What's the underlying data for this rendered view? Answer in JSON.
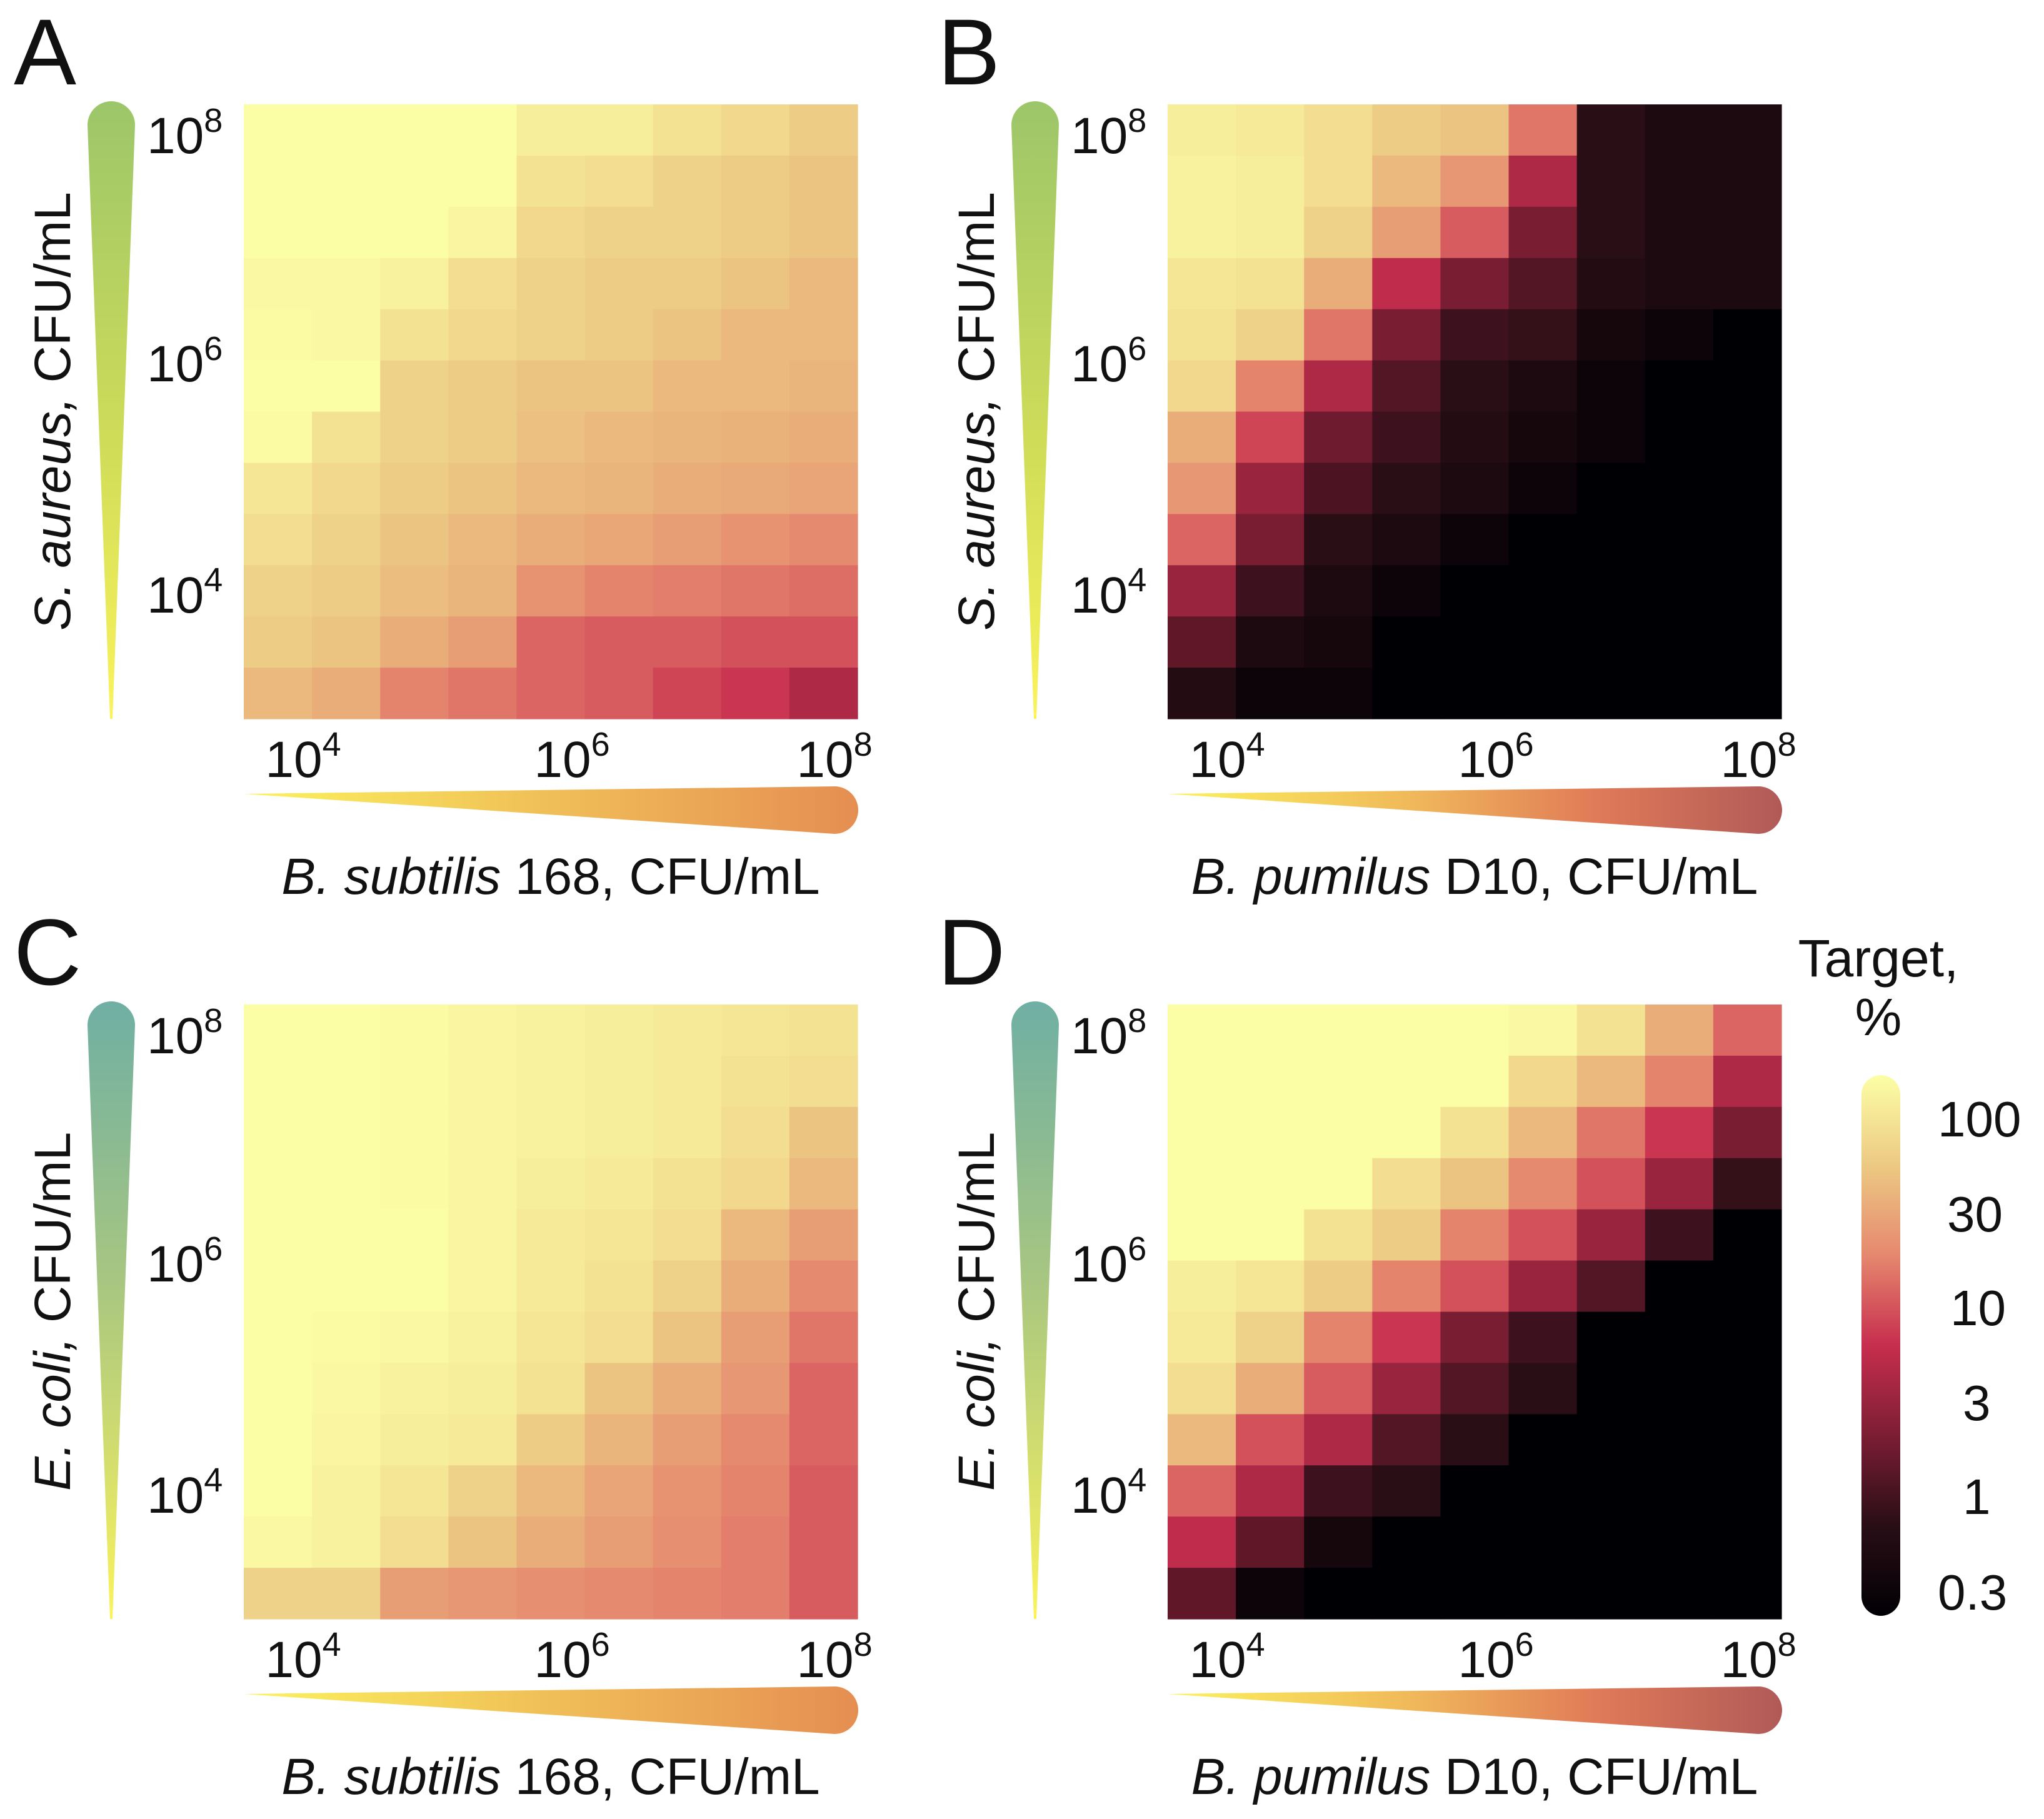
{
  "figure": {
    "x_tick_labels": [
      "10",
      "10",
      "10"
    ],
    "x_tick_exponents": [
      "4",
      "6",
      "8"
    ],
    "y_tick_labels": [
      "10",
      "10",
      "10"
    ],
    "y_tick_exponents": [
      "8",
      "6",
      "4"
    ],
    "colorbar": {
      "title_line1": "Target,",
      "title_line2": "%",
      "tick_labels": [
        "100",
        "30",
        "10",
        "3",
        "1",
        "0.3"
      ]
    },
    "colors": {
      "green_wedge_top": "#9cc66a",
      "teal_wedge_top": "#6fafa4",
      "wedge_bottom": "#fbf35c",
      "orange_wedge_end": "#e58e52",
      "rose_wedge_end": "#b05a58"
    }
  },
  "chart_data": [
    {
      "type": "heatmap",
      "panel": "A",
      "xlabel_italic": "B. subtilis",
      "xlabel_rest": " 168, CFU/mL",
      "ylabel_italic": "S. aureus,",
      "ylabel_rest": " CFU/mL",
      "x_range_log10": [
        3.7,
        8.3
      ],
      "y_range_log10": [
        8.3,
        3.0
      ],
      "color_scale": "target percent, log, 0.3–100",
      "values": [
        [
          100,
          100,
          100,
          100,
          75,
          75,
          60,
          50,
          40
        ],
        [
          100,
          100,
          100,
          100,
          60,
          55,
          45,
          40,
          35
        ],
        [
          100,
          100,
          100,
          85,
          50,
          45,
          45,
          40,
          35
        ],
        [
          90,
          90,
          80,
          55,
          45,
          40,
          40,
          35,
          30
        ],
        [
          95,
          90,
          60,
          50,
          45,
          40,
          35,
          30,
          30
        ],
        [
          100,
          100,
          45,
          40,
          35,
          35,
          30,
          30,
          28
        ],
        [
          95,
          60,
          45,
          40,
          33,
          30,
          28,
          27,
          25
        ],
        [
          65,
          50,
          40,
          35,
          30,
          28,
          25,
          24,
          22
        ],
        [
          55,
          45,
          35,
          30,
          25,
          23,
          20,
          17,
          15
        ],
        [
          45,
          40,
          32,
          28,
          17,
          14,
          13,
          12,
          11
        ],
        [
          40,
          35,
          25,
          20,
          10,
          9,
          9,
          8,
          8
        ],
        [
          30,
          25,
          14,
          12,
          10,
          9,
          7,
          6,
          4
        ]
      ]
    },
    {
      "type": "heatmap",
      "panel": "B",
      "xlabel_italic": "B. pumilus",
      "xlabel_rest": " D10, CFU/mL",
      "ylabel_italic": "S. aureus,",
      "ylabel_rest": " CFU/mL",
      "x_range_log10": [
        3.7,
        8.3
      ],
      "y_range_log10": [
        8.3,
        3.0
      ],
      "color_scale": "target percent, log, 0.3–100",
      "values": [
        [
          75,
          70,
          55,
          40,
          35,
          12,
          0.8,
          0.6,
          0.6
        ],
        [
          80,
          75,
          55,
          30,
          18,
          4,
          0.8,
          0.6,
          0.6
        ],
        [
          80,
          75,
          45,
          20,
          9,
          2,
          0.8,
          0.6,
          0.6
        ],
        [
          65,
          60,
          25,
          5,
          2,
          1.3,
          0.7,
          0.6,
          0.6
        ],
        [
          60,
          45,
          12,
          2,
          1,
          0.9,
          0.5,
          0.4,
          0.3
        ],
        [
          50,
          14,
          4,
          1.3,
          0.8,
          0.6,
          0.4,
          0.3,
          0.3
        ],
        [
          25,
          7,
          1.8,
          1,
          0.7,
          0.5,
          0.4,
          0.3,
          0.3
        ],
        [
          18,
          3,
          1.2,
          0.8,
          0.6,
          0.4,
          0.3,
          0.3,
          0.3
        ],
        [
          10,
          2,
          0.8,
          0.6,
          0.4,
          0.3,
          0.3,
          0.3,
          0.3
        ],
        [
          3,
          1,
          0.6,
          0.4,
          0.3,
          0.3,
          0.3,
          0.3,
          0.3
        ],
        [
          1.5,
          0.6,
          0.5,
          0.3,
          0.3,
          0.3,
          0.3,
          0.3,
          0.3
        ],
        [
          0.7,
          0.4,
          0.4,
          0.3,
          0.3,
          0.3,
          0.3,
          0.3,
          0.3
        ]
      ]
    },
    {
      "type": "heatmap",
      "panel": "C",
      "xlabel_italic": "B. subtilis",
      "xlabel_rest": " 168, CFU/mL",
      "ylabel_italic": "E. coli,",
      "ylabel_rest": " CFU/mL",
      "x_range_log10": [
        3.7,
        8.3
      ],
      "y_range_log10": [
        8.3,
        3.0
      ],
      "color_scale": "target percent, log, 0.3–100",
      "values": [
        [
          100,
          100,
          95,
          85,
          80,
          75,
          70,
          65,
          60
        ],
        [
          100,
          100,
          95,
          85,
          80,
          75,
          70,
          60,
          55
        ],
        [
          100,
          100,
          95,
          85,
          80,
          75,
          70,
          55,
          35
        ],
        [
          100,
          100,
          95,
          85,
          75,
          70,
          60,
          50,
          30
        ],
        [
          100,
          100,
          100,
          85,
          70,
          65,
          55,
          30,
          20
        ],
        [
          100,
          100,
          100,
          85,
          70,
          60,
          45,
          25,
          15
        ],
        [
          100,
          95,
          90,
          80,
          65,
          55,
          35,
          20,
          12
        ],
        [
          100,
          90,
          80,
          75,
          60,
          35,
          25,
          18,
          10
        ],
        [
          100,
          85,
          75,
          70,
          40,
          28,
          20,
          15,
          10
        ],
        [
          100,
          80,
          65,
          45,
          30,
          22,
          17,
          14,
          9
        ],
        [
          90,
          80,
          55,
          35,
          25,
          20,
          16,
          13,
          9
        ],
        [
          45,
          45,
          20,
          18,
          16,
          15,
          14,
          13,
          9
        ]
      ]
    },
    {
      "type": "heatmap",
      "panel": "D",
      "xlabel_italic": "B. pumilus",
      "xlabel_rest": " D10, CFU/mL",
      "ylabel_italic": "E. coli,",
      "ylabel_rest": " CFU/mL",
      "x_range_log10": [
        3.7,
        8.3
      ],
      "y_range_log10": [
        8.3,
        3.0
      ],
      "color_scale": "target percent, log, 0.3–100",
      "values": [
        [
          100,
          100,
          100,
          100,
          100,
          90,
          60,
          25,
          10
        ],
        [
          100,
          100,
          100,
          100,
          100,
          50,
          30,
          14,
          4
        ],
        [
          100,
          100,
          100,
          100,
          60,
          30,
          12,
          6,
          2
        ],
        [
          100,
          100,
          100,
          55,
          35,
          15,
          8,
          3,
          0.9
        ],
        [
          100,
          100,
          60,
          40,
          14,
          8,
          3,
          1,
          0.3
        ],
        [
          75,
          65,
          40,
          14,
          8,
          3,
          1.3,
          0.3,
          0.3
        ],
        [
          70,
          45,
          14,
          6,
          2,
          1,
          0.3,
          0.3,
          0.3
        ],
        [
          55,
          25,
          9,
          3,
          1.3,
          0.8,
          0.3,
          0.3,
          0.3
        ],
        [
          30,
          8,
          4,
          1.3,
          0.8,
          0.3,
          0.3,
          0.3,
          0.3
        ],
        [
          10,
          4,
          1,
          0.8,
          0.3,
          0.3,
          0.3,
          0.3,
          0.3
        ],
        [
          5,
          1.5,
          0.5,
          0.3,
          0.3,
          0.3,
          0.3,
          0.3,
          0.3
        ],
        [
          1.5,
          0.4,
          0.3,
          0.3,
          0.3,
          0.3,
          0.3,
          0.3,
          0.3
        ]
      ]
    }
  ]
}
